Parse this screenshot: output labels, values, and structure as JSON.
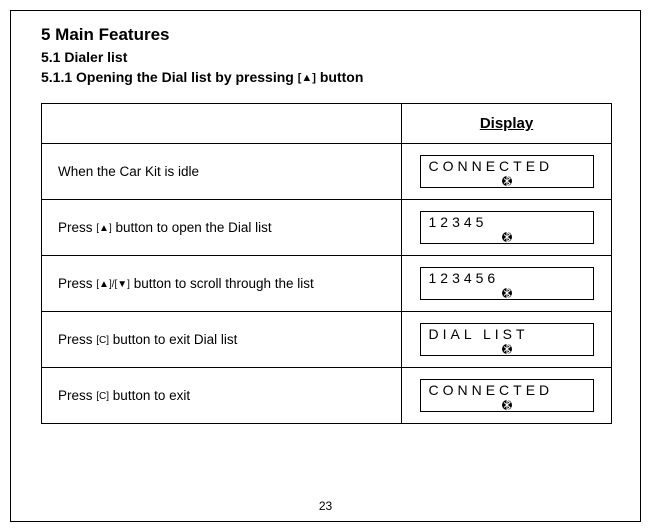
{
  "page_number": "23",
  "headings": {
    "h1": "5  Main Features",
    "h2": "5.1  Dialer list",
    "h3_prefix": "5.1.1  Opening the Dial list by pressing ",
    "h3_button_sym": "[▲]",
    "h3_suffix": " button"
  },
  "table": {
    "display_header": "Display",
    "rows": [
      {
        "step_html": "When the Car Kit is idle",
        "lcd": "CONNECTED"
      },
      {
        "step_html": "Press <span class=\"sym\">[▲]</span> button to open the Dial list",
        "lcd": "12345"
      },
      {
        "step_html": "Press <span class=\"sym\">[▲]/[▼]</span> button to scroll through the list",
        "lcd": "123456"
      },
      {
        "step_html": "Press <span class=\"sym\">[C]</span> button to exit Dial list",
        "lcd": "DIAL  LIST"
      },
      {
        "step_html": "Press <span class=\"sym\">[C]</span> button to exit",
        "lcd": "CONNECTED"
      }
    ]
  }
}
